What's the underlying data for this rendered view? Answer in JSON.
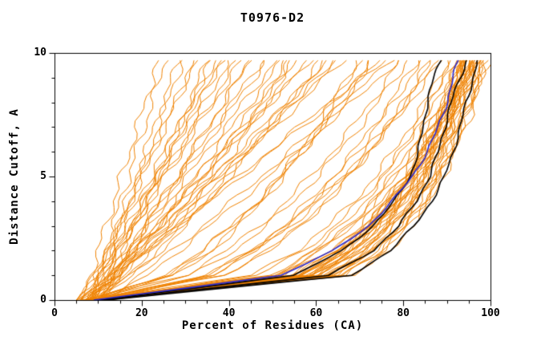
{
  "chart_data": {
    "type": "line",
    "title": "T0976-D2",
    "xlabel": "Percent of Residues (CA)",
    "ylabel": "Distance Cutoff, A",
    "xlim": [
      0,
      100
    ],
    "ylim": [
      0,
      10
    ],
    "x_ticks": [
      0,
      20,
      40,
      60,
      80,
      100
    ],
    "y_ticks": [
      0,
      5,
      10
    ],
    "x_minor_step": 5,
    "y_minor_step": 1,
    "grid": false,
    "legend": false,
    "colors": {
      "model": "#ef8200",
      "highlight": "#000000",
      "reference": "#2a2ad0",
      "frame": "#000000"
    },
    "y_samples": [
      0,
      1,
      2,
      3,
      4,
      5,
      6,
      7,
      8,
      9,
      9.7
    ],
    "series_groups": [
      {
        "name": "model-curves",
        "color": "#ef8200",
        "line_width": 1,
        "curves_x": [
          [
            8,
            9.8,
            11.6,
            13.4,
            15.2,
            17,
            18.8,
            20.6,
            22.4,
            24.2,
            25.5
          ],
          [
            9,
            11.1,
            13.2,
            15.3,
            17.4,
            19.5,
            21.6,
            23.7,
            25.8,
            27.9,
            29.4
          ],
          [
            5,
            9.6,
            12.2,
            14.8,
            17.4,
            20,
            22.6,
            25.2,
            27.8,
            30.4,
            32.2
          ],
          [
            10,
            12.6,
            15.2,
            17.8,
            20.4,
            23,
            25.6,
            28.2,
            30.8,
            33.4,
            35.2
          ],
          [
            8,
            10.4,
            13.1,
            16,
            18.9,
            22,
            25.1,
            28.3,
            31.5,
            34.7,
            37
          ],
          [
            9,
            12.2,
            15.4,
            18.6,
            21.8,
            25,
            28.2,
            31.4,
            34.6,
            37.8,
            39.8
          ],
          [
            6,
            10.7,
            14.4,
            18.1,
            21.8,
            25.5,
            29.2,
            32.9,
            36.6,
            40.3,
            42.9
          ],
          [
            10,
            13.6,
            17.2,
            20.8,
            24.4,
            28,
            31.6,
            35.2,
            38.8,
            42.4,
            44.9
          ],
          [
            8,
            12.1,
            16.2,
            20.3,
            24.4,
            28.5,
            32.6,
            36.7,
            40.8,
            44.9,
            47.7
          ],
          [
            9,
            13.3,
            17.6,
            21.9,
            26.2,
            30.5,
            34.8,
            39.1,
            43.4,
            47.7,
            50.7
          ],
          [
            7,
            16.6,
            22.4,
            27.6,
            32.4,
            36.8,
            41.1,
            44.9,
            48.8,
            52.6,
            54
          ],
          [
            10,
            14.7,
            19.4,
            24.1,
            28.8,
            33.5,
            38.2,
            42.9,
            47.6,
            52.3,
            55.6
          ],
          [
            8,
            13.2,
            18.4,
            23.6,
            28.8,
            34,
            39.2,
            44.4,
            49.6,
            54.8,
            58.4
          ],
          [
            9,
            17.4,
            23.6,
            29.3,
            34.5,
            39.4,
            44.2,
            48.8,
            53.4,
            57.8,
            60.7
          ],
          [
            6,
            12.8,
            18.6,
            24.4,
            30.2,
            36,
            41.8,
            47.6,
            53.4,
            59.2,
            63.3
          ],
          [
            10,
            15.8,
            21.6,
            27.4,
            33.2,
            39,
            44.8,
            50.6,
            56.4,
            62.2,
            66.3
          ],
          [
            8,
            27.9,
            36.2,
            42.5,
            47.8,
            52.5,
            56.8,
            60.7,
            64.3,
            67.8,
            70
          ],
          [
            9,
            25.3,
            33.8,
            40.6,
            46.5,
            51.9,
            56.8,
            61.5,
            65.9,
            70,
            72.8
          ],
          [
            5,
            14,
            21,
            28,
            35,
            42,
            49,
            56,
            63,
            70,
            74.9
          ],
          [
            11,
            19.6,
            27,
            34,
            40.8,
            47.4,
            53.9,
            60.4,
            66.7,
            72.9,
            77.2
          ],
          [
            8,
            31.4,
            41.1,
            48.6,
            54.8,
            60.3,
            65.3,
            69.9,
            74.2,
            78.2,
            80.9
          ],
          [
            9,
            36,
            45.8,
            53.2,
            59.2,
            64.6,
            69.4,
            73.7,
            77.8,
            81.5,
            84
          ],
          [
            7,
            38.8,
            49,
            56.4,
            62.4,
            67.6,
            72.2,
            76.4,
            80.2,
            83.7,
            86
          ],
          [
            10,
            35,
            45.3,
            53.3,
            59.9,
            65.9,
            71.2,
            76.1,
            80.6,
            85,
            88
          ],
          [
            8,
            45.1,
            55.4,
            62.8,
            68.6,
            73.5,
            77.7,
            81.5,
            84.9,
            88.1,
            90.2
          ],
          [
            9,
            51.1,
            60.7,
            67.6,
            72.8,
            77.2,
            81.1,
            84.4,
            87.5,
            90.4,
            92.2
          ],
          [
            7,
            51.1,
            61.2,
            68.3,
            73.9,
            78.5,
            82.5,
            86,
            89.2,
            92.3,
            94.2
          ],
          [
            10,
            55.1,
            64.7,
            71.4,
            76.5,
            80.9,
            84.6,
            87.8,
            90.8,
            93.5,
            95.3
          ],
          [
            8,
            58,
            67.5,
            73.9,
            78.8,
            82.8,
            86.3,
            89.4,
            92.2,
            94.7,
            96.3
          ],
          [
            9,
            62.7,
            71.5,
            77.3,
            81.7,
            85.5,
            88.6,
            91.3,
            93.7,
            96,
            97.4
          ],
          [
            10,
            66.2,
            74.5,
            79.9,
            84.1,
            87.5,
            90.4,
            92.9,
            95.1,
            97.1,
            98.5
          ],
          [
            8,
            68.8,
            76.8,
            82.1,
            86,
            89.2,
            91.9,
            94.3,
            96.4,
            98.3,
            99.5
          ],
          [
            10,
            57,
            66,
            72,
            77,
            81,
            84.5,
            87.5,
            90,
            92.5,
            94
          ],
          [
            11,
            59,
            68,
            74,
            78.5,
            82.5,
            86,
            88.5,
            91,
            93.5,
            95
          ],
          [
            9,
            55,
            65,
            71.5,
            76.5,
            80.5,
            84,
            87,
            89.5,
            92,
            93.5
          ],
          [
            12,
            61,
            70,
            76,
            80.5,
            84,
            87,
            89.5,
            92,
            94.5,
            96
          ],
          [
            10,
            63,
            72,
            78,
            82,
            85.5,
            88.5,
            91,
            93,
            95,
            96.5
          ],
          [
            11,
            58,
            67,
            73.5,
            78,
            82,
            85,
            88,
            90.5,
            93,
            94.5
          ],
          [
            9,
            60,
            69,
            75,
            79.5,
            83.5,
            86.5,
            89,
            91.5,
            94,
            95.5
          ],
          [
            10,
            64,
            73,
            79,
            83.5,
            87,
            89.5,
            92,
            94,
            96,
            97.5
          ],
          [
            12,
            66,
            75,
            80.5,
            84.5,
            88,
            90.5,
            92.5,
            94.5,
            96.5,
            98
          ],
          [
            11,
            62,
            71,
            77,
            81.5,
            85,
            88,
            90.5,
            92.5,
            94.5,
            96
          ],
          [
            10,
            56,
            66,
            72.5,
            77.5,
            81.5,
            85,
            87.5,
            90,
            92.5,
            94
          ],
          [
            9,
            53,
            63,
            70,
            75,
            79.5,
            83,
            86,
            89,
            91.5,
            93
          ]
        ]
      },
      {
        "name": "highlight-curves",
        "color": "#000000",
        "line_width": 1.6,
        "curves_x": [
          [
            10,
            55,
            66,
            73,
            78,
            81.5,
            83.5,
            84.5,
            85.5,
            87,
            88.5
          ],
          [
            11,
            63,
            73,
            79,
            83,
            86,
            88,
            89.5,
            91,
            93,
            94.5
          ],
          [
            12,
            68,
            77,
            82.5,
            86.5,
            89.5,
            91.5,
            93,
            94.5,
            96,
            97
          ]
        ]
      },
      {
        "name": "reference-curve",
        "color": "#2a2ad0",
        "line_width": 1.6,
        "curves_x": [
          [
            9,
            52,
            64,
            72,
            77.5,
            82,
            85.5,
            88,
            90,
            91.5,
            92.5
          ]
        ]
      }
    ]
  }
}
